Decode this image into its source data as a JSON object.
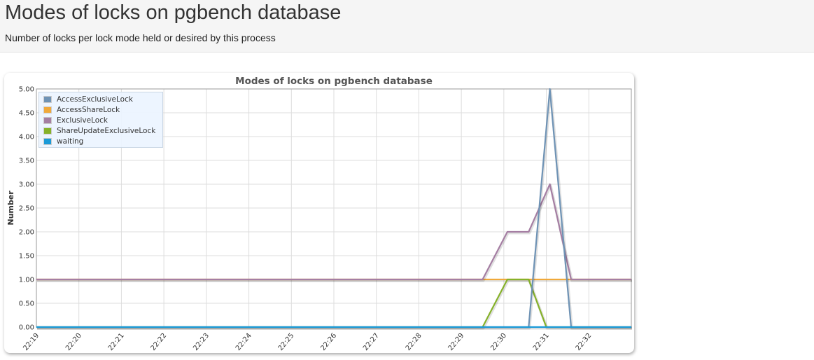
{
  "page": {
    "title": "Modes of locks on pgbench database",
    "subtitle": "Number of locks per lock mode held or desired by this process"
  },
  "chart_data": {
    "type": "line",
    "title": "Modes of locks on pgbench database",
    "xlabel": "",
    "ylabel": "Number",
    "ylim": [
      0,
      5
    ],
    "yticks": [
      "0.00",
      "0.50",
      "1.00",
      "1.50",
      "2.00",
      "2.50",
      "3.00",
      "3.50",
      "4.00",
      "4.50",
      "5.00"
    ],
    "xlim": [
      "22:19",
      "22:33"
    ],
    "xticks": [
      "22:19",
      "22:20",
      "22:21",
      "22:22",
      "22:23",
      "22:24",
      "22:25",
      "22:26",
      "22:27",
      "22:28",
      "22:29",
      "22:30",
      "22:31",
      "22:32"
    ],
    "grid": true,
    "legend_position": "top-left",
    "series": [
      {
        "name": "AccessExclusiveLock",
        "color": "#6f93b5",
        "points": [
          [
            "22:19",
            0
          ],
          [
            "22:30:35",
            0
          ],
          [
            "22:31:05",
            5
          ],
          [
            "22:31:35",
            0
          ],
          [
            "22:33",
            0
          ]
        ]
      },
      {
        "name": "AccessShareLock",
        "color": "#f0a93b",
        "points": [
          [
            "22:19",
            1
          ],
          [
            "22:33",
            1
          ]
        ]
      },
      {
        "name": "ExclusiveLock",
        "color": "#a57ea3",
        "points": [
          [
            "22:19",
            1
          ],
          [
            "22:29:30",
            1
          ],
          [
            "22:30:05",
            2
          ],
          [
            "22:30:35",
            2
          ],
          [
            "22:31:05",
            3
          ],
          [
            "22:31:35",
            1
          ],
          [
            "22:33",
            1
          ]
        ]
      },
      {
        "name": "ShareUpdateExclusiveLock",
        "color": "#86b22a",
        "points": [
          [
            "22:19",
            0
          ],
          [
            "22:29:30",
            0
          ],
          [
            "22:30:05",
            1
          ],
          [
            "22:30:35",
            1
          ],
          [
            "22:31:00",
            0
          ],
          [
            "22:33",
            0
          ]
        ]
      },
      {
        "name": "waiting",
        "color": "#1a9ad8",
        "points": [
          [
            "22:19",
            0
          ],
          [
            "22:33",
            0
          ]
        ]
      }
    ]
  }
}
